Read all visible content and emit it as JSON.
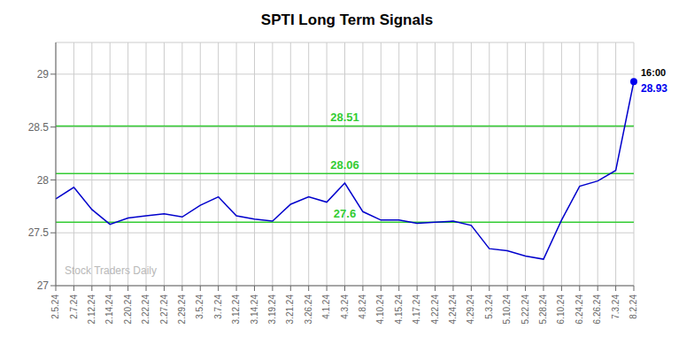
{
  "chart_data": {
    "type": "line",
    "title": "SPTI Long Term Signals",
    "watermark": "Stock Traders Daily",
    "categories": [
      "2.5.24",
      "2.7.24",
      "2.12.24",
      "2.14.24",
      "2.20.24",
      "2.22.24",
      "2.27.24",
      "2.29.24",
      "3.5.24",
      "3.7.24",
      "3.12.24",
      "3.14.24",
      "3.19.24",
      "3.21.24",
      "3.26.24",
      "4.1.24",
      "4.3.24",
      "4.8.24",
      "4.10.24",
      "4.15.24",
      "4.17.24",
      "4.22.24",
      "4.24.24",
      "4.29.24",
      "5.3.24",
      "5.10.24",
      "5.22.24",
      "5.28.24",
      "6.10.24",
      "6.24.24",
      "6.26.24",
      "7.3.24",
      "8.2.24"
    ],
    "values": [
      27.82,
      27.93,
      27.72,
      27.58,
      27.64,
      27.66,
      27.68,
      27.65,
      27.76,
      27.84,
      27.66,
      27.63,
      27.61,
      27.77,
      27.84,
      27.79,
      27.97,
      27.7,
      27.62,
      27.62,
      27.59,
      27.6,
      27.61,
      27.57,
      27.35,
      27.33,
      27.28,
      27.25,
      27.62,
      27.94,
      27.99,
      28.09,
      28.93
    ],
    "color": "#0000cc",
    "marker_color": "#0000ee",
    "hlines": [
      {
        "value": 28.51,
        "label": "28.51",
        "color": "#33cc33"
      },
      {
        "value": 28.06,
        "label": "28.06",
        "color": "#33cc33"
      },
      {
        "value": 27.6,
        "label": "27.6",
        "color": "#33cc33"
      }
    ],
    "annotations": [
      {
        "text": "16:00",
        "color": "#000000"
      },
      {
        "text": "28.93",
        "color": "#0000ee"
      }
    ],
    "ylim": [
      27.0,
      29.3
    ],
    "yticks": [
      27.0,
      27.5,
      28.0,
      28.5,
      29.0
    ],
    "grid": true
  }
}
